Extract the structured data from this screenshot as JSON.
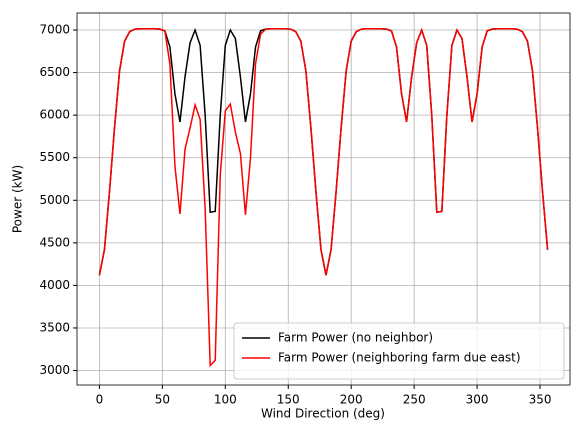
{
  "chart_data": {
    "type": "line",
    "xlabel": "Wind Direction (deg)",
    "ylabel": "Power (kW)",
    "x": [
      0,
      4,
      8,
      12,
      16,
      20,
      24,
      28,
      32,
      36,
      40,
      44,
      48,
      52,
      56,
      60,
      64,
      68,
      72,
      76,
      80,
      84,
      88,
      92,
      96,
      100,
      104,
      108,
      112,
      116,
      120,
      124,
      128,
      132,
      136,
      140,
      144,
      148,
      152,
      156,
      160,
      164,
      168,
      172,
      176,
      180,
      184,
      188,
      192,
      196,
      200,
      204,
      208,
      212,
      216,
      220,
      224,
      228,
      232,
      236,
      240,
      244,
      248,
      252,
      256,
      260,
      264,
      268,
      272,
      276,
      280,
      284,
      288,
      292,
      296,
      300,
      304,
      308,
      312,
      316,
      320,
      324,
      328,
      332,
      336,
      340,
      344,
      348,
      352,
      356
    ],
    "series": [
      {
        "name": "Farm Power (no neighbor)",
        "color": "#000000",
        "values": [
          4120,
          4420,
          5100,
          5850,
          6520,
          6870,
          6980,
          7010,
          7015,
          7015,
          7015,
          7015,
          7010,
          6990,
          6800,
          6250,
          5920,
          6450,
          6850,
          7000,
          6820,
          6000,
          4860,
          4870,
          6000,
          6820,
          7000,
          6900,
          6450,
          5920,
          6250,
          6800,
          6990,
          7010,
          7015,
          7015,
          7015,
          7015,
          7010,
          6980,
          6870,
          6520,
          5850,
          5100,
          4420,
          4120,
          4420,
          5100,
          5850,
          6520,
          6870,
          6980,
          7010,
          7015,
          7015,
          7015,
          7015,
          7010,
          6990,
          6800,
          6250,
          5920,
          6450,
          6850,
          7000,
          6820,
          6000,
          4860,
          4870,
          6000,
          6820,
          7000,
          6900,
          6450,
          5920,
          6250,
          6800,
          6990,
          7010,
          7015,
          7015,
          7015,
          7015,
          7010,
          6980,
          6870,
          6520,
          5850,
          5100,
          4420
        ]
      },
      {
        "name": "Farm Power (neighboring farm due east)",
        "color": "#ff0000",
        "values": [
          4120,
          4420,
          5100,
          5850,
          6520,
          6870,
          6980,
          7010,
          7015,
          7015,
          7015,
          7015,
          7010,
          6990,
          6600,
          5400,
          4840,
          5600,
          5850,
          6120,
          5950,
          4900,
          3060,
          3120,
          5300,
          6050,
          6130,
          5800,
          5550,
          4830,
          5500,
          6600,
          6950,
          7010,
          7015,
          7015,
          7015,
          7015,
          7010,
          6980,
          6870,
          6520,
          5850,
          5100,
          4420,
          4120,
          4420,
          5100,
          5850,
          6520,
          6870,
          6980,
          7010,
          7015,
          7015,
          7015,
          7015,
          7010,
          6990,
          6800,
          6250,
          5920,
          6450,
          6850,
          7000,
          6820,
          6000,
          4860,
          4870,
          6000,
          6820,
          7000,
          6900,
          6450,
          5920,
          6250,
          6800,
          6990,
          7010,
          7015,
          7015,
          7015,
          7015,
          7010,
          6980,
          6870,
          6520,
          5850,
          5100,
          4420
        ]
      }
    ],
    "xlim": [
      -17.8,
      373.8
    ],
    "ylim": [
      2830,
      7200
    ],
    "xticks": [
      0,
      50,
      100,
      150,
      200,
      250,
      300,
      350
    ],
    "yticks": [
      3000,
      3500,
      4000,
      4500,
      5000,
      5500,
      6000,
      6500,
      7000
    ],
    "grid": true,
    "legend": "lower right"
  }
}
